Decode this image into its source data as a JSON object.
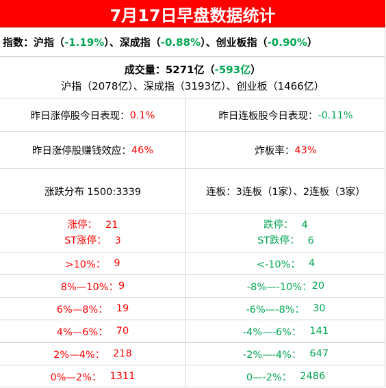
{
  "title": "7月17日早盘数据统计",
  "index": {
    "prefix": "指数：沪指（",
    "sh": "-1.19%",
    "mid1": "）、深成指（",
    "sz": "-0.88%",
    "mid2": "）、创业板指（",
    "cy": "-0.90%",
    "suffix": "）"
  },
  "volume": {
    "label": "成交量：5271亿（",
    "change": "-593亿",
    "close": "）",
    "detail": "沪指（2078亿）、深成指（3193亿）、创业板（1466亿）"
  },
  "yesterday_limit_up": {
    "label": "昨日涨停股今日表现：",
    "value": "0.1%"
  },
  "yesterday_streak": {
    "label": "昨日连板股今日表现：",
    "value": "-0.11%"
  },
  "profit_effect": {
    "label": "昨日涨停股赚钱效应：",
    "value": "46%"
  },
  "blowup_rate": {
    "label": "炸板率：",
    "value": "43%"
  },
  "distribution": "涨跌分布 1500:3339",
  "streak_info": "连板：3连板（1家）、2连板（3家）",
  "up_rows": [
    {
      "label": "涨停：",
      "value": "21"
    },
    {
      "label": "ST涨停：",
      "value": "3"
    },
    {
      "label": ">10%：",
      "value": "9"
    },
    {
      "label": "8%—10%：",
      "value": "9"
    },
    {
      "label": "6%—8%：",
      "value": "19"
    },
    {
      "label": "4%—6%：",
      "value": "70"
    },
    {
      "label": "2%—4%：",
      "value": "218"
    },
    {
      "label": "0%—2%：",
      "value": "1311"
    }
  ],
  "down_rows": [
    {
      "label": "跌停：",
      "value": "4"
    },
    {
      "label": "ST跌停：",
      "value": "6"
    },
    {
      "label": "<-10%：",
      "value": "4"
    },
    {
      "label": "-8%—-10%：",
      "value": "20"
    },
    {
      "label": "-6%—-8%：",
      "value": "30"
    },
    {
      "label": "-4%—-6%：",
      "value": "141"
    },
    {
      "label": "-2%—-4%：",
      "value": "647"
    },
    {
      "label": "0—-2%：",
      "value": "2486"
    }
  ],
  "colors": {
    "title_bg": "#ff0000",
    "up": "#ff0000",
    "down": "#00a651"
  }
}
